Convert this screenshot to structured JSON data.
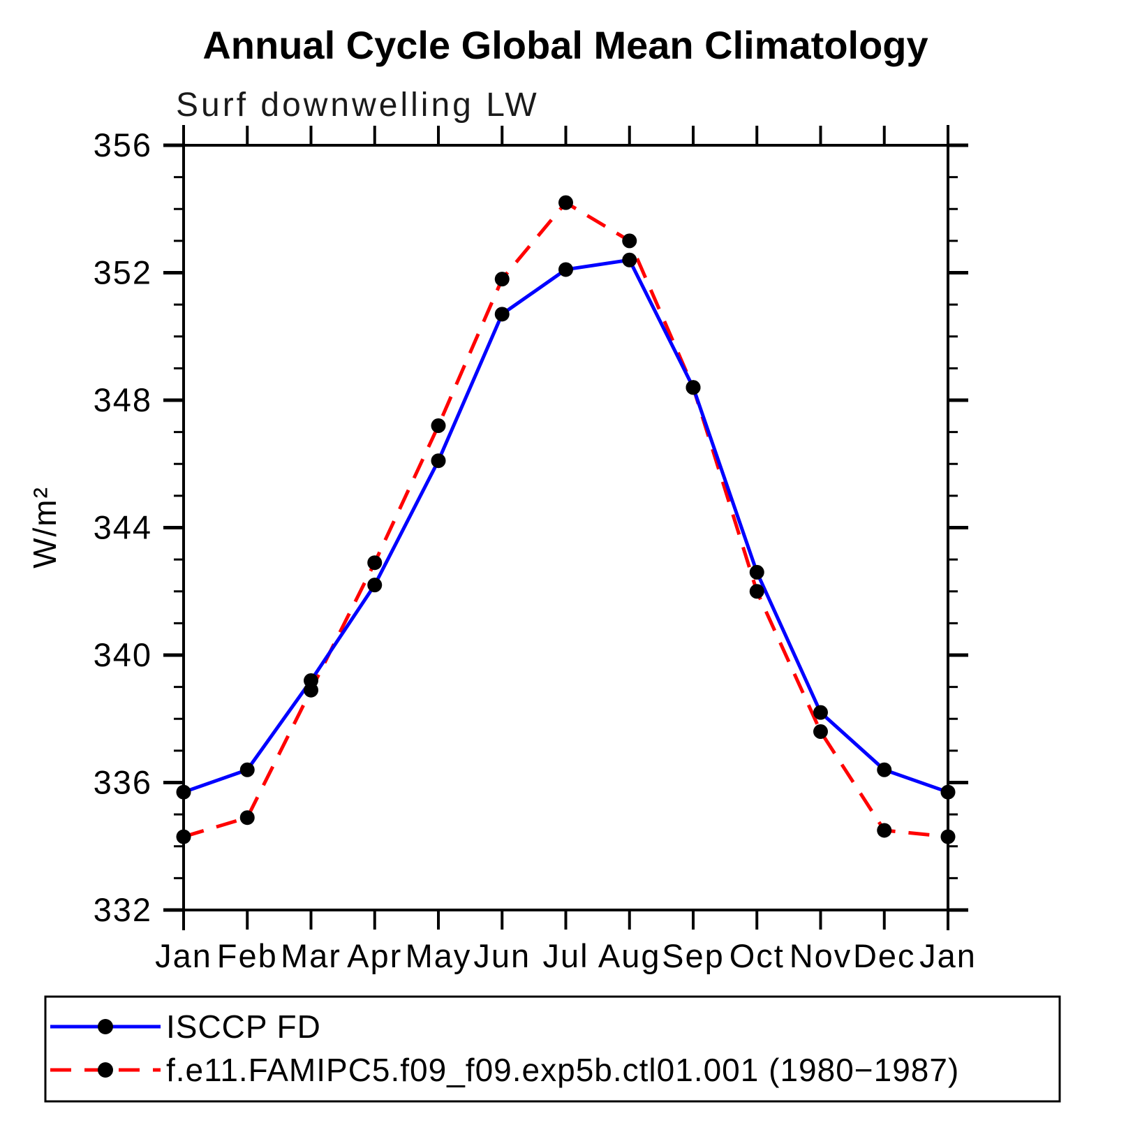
{
  "page": {
    "background_color": "#ffffff"
  },
  "chart_data": {
    "type": "line",
    "title": "Annual Cycle Global Mean Climatology",
    "subtitle": "Surf downwelling LW",
    "xlabel": "",
    "ylabel": "W/m²",
    "categories": [
      "Jan",
      "Feb",
      "Mar",
      "Apr",
      "May",
      "Jun",
      "Jul",
      "Aug",
      "Sep",
      "Oct",
      "Nov",
      "Dec",
      "Jan"
    ],
    "ylim": [
      332,
      356
    ],
    "y_major_ticks": [
      332,
      336,
      340,
      344,
      348,
      352,
      356
    ],
    "y_minor_tick_step": 1,
    "grid": false,
    "frame": "box-with-outward-ticks",
    "axis_color": "#000000",
    "marker": "filled-circle",
    "marker_color": "#000000",
    "legend_position": "bottom-left-box",
    "series": [
      {
        "name": "ISCCP FD",
        "color": "#0000ff",
        "line_style": "solid",
        "values": [
          335.7,
          336.4,
          339.2,
          342.2,
          346.1,
          350.7,
          352.1,
          352.4,
          348.4,
          342.6,
          338.2,
          336.4,
          335.7
        ]
      },
      {
        "name": "f.e11.FAMIPC5.f09_f09.exp5b.ctl01.001 (1980−1987)",
        "color": "#ff0000",
        "line_style": "dashed",
        "values": [
          334.3,
          334.9,
          338.9,
          342.9,
          347.2,
          351.8,
          354.2,
          353.0,
          348.4,
          342.0,
          337.6,
          334.5,
          334.3
        ]
      }
    ]
  }
}
